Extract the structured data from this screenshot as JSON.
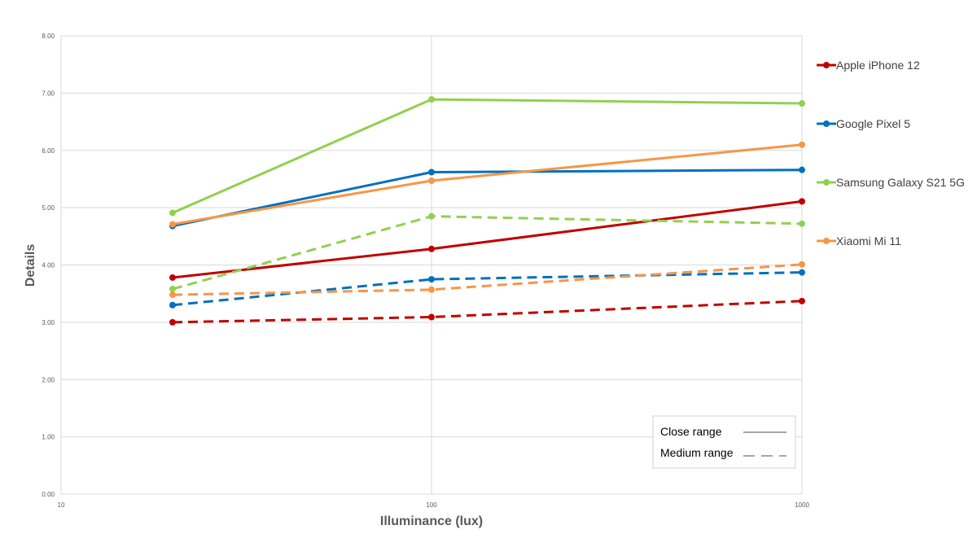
{
  "chart_data": {
    "type": "line",
    "xlabel": "Illuminance (lux)",
    "ylabel": "Details",
    "xscale": "log",
    "xlim": [
      10,
      1000
    ],
    "ylim": [
      0,
      8
    ],
    "x_ticks": [
      "10",
      "100",
      "1000"
    ],
    "y_ticks": [
      "0.00",
      "1.00",
      "2.00",
      "3.00",
      "4.00",
      "5.00",
      "6.00",
      "7.00",
      "8.00"
    ],
    "grid": "vertical and horizontal",
    "legend_position": "right",
    "x": [
      20,
      100,
      1000
    ],
    "series": [
      {
        "name": "Apple iPhone 12",
        "color": "#C00000",
        "range": "close",
        "values": [
          3.78,
          4.28,
          5.11
        ]
      },
      {
        "name": "Google Pixel 5",
        "color": "#0070C0",
        "range": "close",
        "values": [
          4.68,
          5.62,
          5.66
        ]
      },
      {
        "name": "Samsung Galaxy S21 5G",
        "color": "#92D050",
        "range": "close",
        "values": [
          4.91,
          6.89,
          6.82
        ]
      },
      {
        "name": "Xiaomi Mi 11",
        "color": "#F79646",
        "range": "close",
        "values": [
          4.71,
          5.47,
          6.1
        ]
      },
      {
        "name": "Apple iPhone 12",
        "color": "#C00000",
        "range": "medium",
        "values": [
          3.0,
          3.09,
          3.37
        ]
      },
      {
        "name": "Google Pixel 5",
        "color": "#0070C0",
        "range": "medium",
        "values": [
          3.3,
          3.75,
          3.87
        ]
      },
      {
        "name": "Samsung Galaxy S21 5G",
        "color": "#92D050",
        "range": "medium",
        "values": [
          3.58,
          4.85,
          4.72
        ]
      },
      {
        "name": "Xiaomi Mi 11",
        "color": "#F79646",
        "range": "medium",
        "values": [
          3.48,
          3.57,
          4.01
        ]
      }
    ],
    "legend": [
      {
        "name": "Apple iPhone 12",
        "color": "#C00000"
      },
      {
        "name": "Google Pixel 5",
        "color": "#0070C0"
      },
      {
        "name": "Samsung Galaxy S21 5G",
        "color": "#92D050"
      },
      {
        "name": "Xiaomi Mi 11",
        "color": "#F79646"
      }
    ],
    "line_style_legend": [
      {
        "label": "Close range",
        "style": "solid"
      },
      {
        "label": "Medium range",
        "style": "dashed"
      }
    ]
  }
}
